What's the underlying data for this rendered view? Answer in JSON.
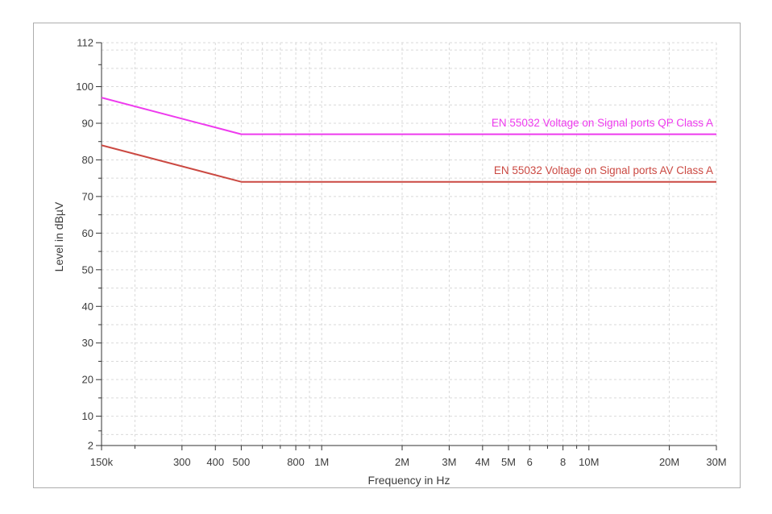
{
  "window": {
    "background": "#ffffff",
    "panel_border": "#adadad"
  },
  "chart_data": {
    "type": "line",
    "title": "",
    "xlabel": "Frequency in Hz",
    "ylabel": "Level in dBµV",
    "x_scale": "log",
    "xlim_hz": [
      150000,
      30000000
    ],
    "ylim_dbuv": [
      2,
      112
    ],
    "grid": true,
    "legend_position": "labels-above-lines-right",
    "colors": {
      "axis": "#333333",
      "grid": "#d9d9d9",
      "tick_text": "#3c3c3c"
    },
    "y_axis": {
      "major_ticks": [
        {
          "value": 112,
          "label": "112"
        },
        {
          "value": 100,
          "label": "100"
        },
        {
          "value": 90,
          "label": "90"
        },
        {
          "value": 80,
          "label": "80"
        },
        {
          "value": 70,
          "label": "70"
        },
        {
          "value": 60,
          "label": "60"
        },
        {
          "value": 50,
          "label": "50"
        },
        {
          "value": 40,
          "label": "40"
        },
        {
          "value": 30,
          "label": "30"
        },
        {
          "value": 20,
          "label": "20"
        },
        {
          "value": 10,
          "label": "10"
        },
        {
          "value": 2,
          "label": "2"
        }
      ],
      "minor_ticks": [
        106,
        95,
        85,
        75,
        65,
        55,
        45,
        35,
        25,
        15,
        6
      ],
      "gridline_values": [
        112,
        110,
        105,
        100,
        95,
        90,
        85,
        80,
        75,
        70,
        65,
        60,
        55,
        50,
        45,
        40,
        35,
        30,
        25,
        20,
        15,
        10,
        5
      ]
    },
    "x_axis": {
      "ticks": [
        {
          "hz": 150000,
          "label": "150k"
        },
        {
          "hz": 200000,
          "label": ""
        },
        {
          "hz": 300000,
          "label": "300"
        },
        {
          "hz": 400000,
          "label": "400"
        },
        {
          "hz": 500000,
          "label": "500"
        },
        {
          "hz": 600000,
          "label": ""
        },
        {
          "hz": 700000,
          "label": ""
        },
        {
          "hz": 800000,
          "label": "800"
        },
        {
          "hz": 900000,
          "label": ""
        },
        {
          "hz": 1000000,
          "label": "1M"
        },
        {
          "hz": 2000000,
          "label": "2M"
        },
        {
          "hz": 3000000,
          "label": "3M"
        },
        {
          "hz": 4000000,
          "label": "4M"
        },
        {
          "hz": 5000000,
          "label": "5M"
        },
        {
          "hz": 6000000,
          "label": "6"
        },
        {
          "hz": 7000000,
          "label": ""
        },
        {
          "hz": 8000000,
          "label": "8"
        },
        {
          "hz": 9000000,
          "label": ""
        },
        {
          "hz": 10000000,
          "label": "10M"
        },
        {
          "hz": 20000000,
          "label": "20M"
        },
        {
          "hz": 30000000,
          "label": "30M"
        }
      ],
      "gridline_hz": [
        200000,
        300000,
        400000,
        500000,
        600000,
        700000,
        800000,
        900000,
        1000000,
        2000000,
        3000000,
        4000000,
        5000000,
        6000000,
        7000000,
        8000000,
        9000000,
        10000000,
        20000000,
        30000000
      ]
    },
    "series": [
      {
        "id": "qp",
        "label": "EN 55032 Voltage on Signal ports QP Class A",
        "color": "#ee3bee",
        "points_hz_dbuv": [
          [
            150000,
            97
          ],
          [
            500000,
            87
          ],
          [
            30000000,
            87
          ]
        ]
      },
      {
        "id": "av",
        "label": "EN 55032 Voltage on Signal ports AV Class A",
        "color": "#cb4942",
        "points_hz_dbuv": [
          [
            150000,
            84
          ],
          [
            500000,
            74
          ],
          [
            30000000,
            74
          ]
        ]
      }
    ]
  }
}
